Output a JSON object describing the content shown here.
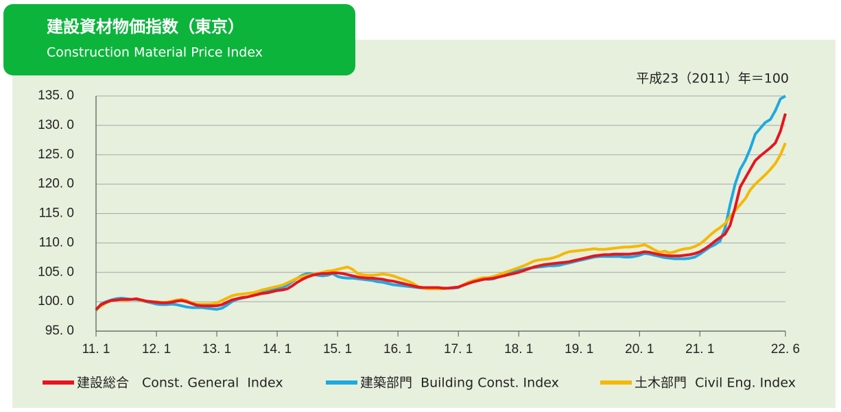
{
  "chart_data": {
    "type": "line",
    "title": "建設資材物価指数（東京）",
    "subtitle": "Construction Material Price Index",
    "note": "平成23（2011）年＝100",
    "categories": [
      "11. 1",
      null,
      null,
      null,
      null,
      null,
      null,
      null,
      null,
      null,
      null,
      null,
      "12. 1",
      null,
      null,
      null,
      null,
      null,
      null,
      null,
      null,
      null,
      null,
      null,
      "13. 1",
      null,
      null,
      null,
      null,
      null,
      null,
      null,
      null,
      null,
      null,
      null,
      "14. 1",
      null,
      null,
      null,
      null,
      null,
      null,
      null,
      null,
      null,
      null,
      null,
      "15. 1",
      null,
      null,
      null,
      null,
      null,
      null,
      null,
      null,
      null,
      null,
      null,
      "16. 1",
      null,
      null,
      null,
      null,
      null,
      null,
      null,
      null,
      null,
      null,
      null,
      "17. 1",
      null,
      null,
      null,
      null,
      null,
      null,
      null,
      null,
      null,
      null,
      null,
      "18. 1",
      null,
      null,
      null,
      null,
      null,
      null,
      null,
      null,
      null,
      null,
      null,
      "19. 1",
      null,
      null,
      null,
      null,
      null,
      null,
      null,
      null,
      null,
      null,
      null,
      "20. 1",
      null,
      null,
      null,
      null,
      null,
      null,
      null,
      null,
      null,
      null,
      null,
      "21. 1",
      null,
      null,
      null,
      null,
      null,
      null,
      null,
      null,
      null,
      null,
      null,
      null,
      null,
      null,
      null,
      null,
      "22. 6"
    ],
    "series": [
      {
        "name": "建設総合　Const. General  Index",
        "color": "#e8141e",
        "values": [
          98.7,
          99.5,
          99.9,
          100.2,
          100.3,
          100.4,
          100.4,
          100.4,
          100.5,
          100.3,
          100.1,
          100.0,
          99.9,
          99.8,
          99.8,
          99.9,
          100.1,
          100.2,
          100.0,
          99.7,
          99.4,
          99.3,
          99.3,
          99.3,
          99.3,
          99.5,
          99.9,
          100.3,
          100.5,
          100.7,
          100.8,
          101.0,
          101.2,
          101.4,
          101.5,
          101.7,
          101.9,
          102.0,
          102.2,
          102.7,
          103.3,
          103.8,
          104.2,
          104.5,
          104.7,
          104.8,
          104.8,
          104.9,
          104.9,
          104.8,
          104.6,
          104.4,
          104.2,
          104.1,
          104.0,
          104.0,
          103.9,
          103.8,
          103.6,
          103.5,
          103.3,
          103.1,
          102.9,
          102.7,
          102.5,
          102.4,
          102.4,
          102.4,
          102.4,
          102.3,
          102.3,
          102.4,
          102.5,
          102.8,
          103.1,
          103.4,
          103.6,
          103.8,
          103.9,
          104.0,
          104.2,
          104.4,
          104.6,
          104.8,
          105.0,
          105.3,
          105.6,
          105.9,
          106.1,
          106.3,
          106.4,
          106.5,
          106.6,
          106.7,
          106.8,
          107.0,
          107.2,
          107.4,
          107.6,
          107.8,
          107.9,
          108.0,
          108.0,
          108.1,
          108.1,
          108.1,
          108.1,
          108.2,
          108.3,
          108.5,
          108.4,
          108.2,
          108.0,
          107.9,
          107.8,
          107.8,
          107.8,
          107.9,
          108.0,
          108.2,
          108.5,
          109.0,
          109.6,
          110.3,
          110.9,
          111.5,
          113.0,
          116.0,
          119.5,
          121.0,
          122.5,
          124.0,
          124.8,
          125.5,
          126.2,
          127.0,
          129.0,
          132.0
        ]
      },
      {
        "name": "建築部門  Building Const. Index",
        "color": "#1ea9e1",
        "values": [
          98.5,
          99.6,
          100.0,
          100.3,
          100.5,
          100.6,
          100.5,
          100.4,
          100.4,
          100.2,
          100.0,
          99.8,
          99.6,
          99.5,
          99.5,
          99.6,
          99.5,
          99.3,
          99.1,
          99.0,
          99.0,
          99.0,
          98.9,
          98.8,
          98.7,
          98.9,
          99.4,
          100.0,
          100.4,
          100.6,
          100.8,
          101.0,
          101.3,
          101.6,
          101.8,
          102.0,
          102.2,
          102.4,
          102.8,
          103.4,
          104.0,
          104.5,
          104.8,
          104.7,
          104.5,
          104.4,
          104.5,
          104.8,
          104.3,
          104.1,
          104.0,
          104.0,
          103.9,
          103.8,
          103.7,
          103.6,
          103.4,
          103.3,
          103.1,
          102.9,
          102.8,
          102.7,
          102.6,
          102.5,
          102.4,
          102.3,
          102.4,
          102.3,
          102.3,
          102.3,
          102.3,
          102.3,
          102.4,
          102.9,
          103.3,
          103.6,
          103.8,
          103.9,
          103.8,
          103.9,
          104.2,
          104.5,
          104.8,
          105.1,
          105.3,
          105.5,
          105.7,
          105.8,
          105.9,
          106.0,
          106.1,
          106.1,
          106.2,
          106.4,
          106.6,
          106.8,
          107.0,
          107.2,
          107.4,
          107.6,
          107.7,
          107.7,
          107.7,
          107.7,
          107.7,
          107.6,
          107.6,
          107.7,
          107.9,
          108.2,
          108.1,
          107.9,
          107.7,
          107.5,
          107.4,
          107.3,
          107.3,
          107.3,
          107.4,
          107.6,
          108.1,
          108.7,
          109.3,
          109.7,
          110.3,
          112.5,
          116.5,
          120.0,
          122.5,
          124.0,
          126.0,
          128.5,
          129.5,
          130.5,
          131.0,
          132.5,
          134.5,
          135.0
        ]
      },
      {
        "name": "土木部門  Civil Eng. Index",
        "color": "#f5b800",
        "values": [
          98.6,
          99.3,
          99.8,
          100.2,
          100.3,
          100.3,
          100.3,
          100.4,
          100.5,
          100.2,
          100.1,
          100.0,
          100.0,
          99.9,
          99.9,
          100.1,
          100.3,
          100.4,
          100.2,
          99.8,
          99.6,
          99.6,
          99.6,
          99.6,
          99.8,
          100.2,
          100.6,
          101.0,
          101.2,
          101.3,
          101.4,
          101.5,
          101.7,
          102.0,
          102.2,
          102.4,
          102.6,
          102.8,
          103.2,
          103.6,
          104.0,
          104.3,
          104.5,
          104.6,
          104.8,
          105.0,
          105.2,
          105.3,
          105.5,
          105.7,
          105.9,
          105.5,
          104.8,
          104.6,
          104.5,
          104.5,
          104.6,
          104.7,
          104.6,
          104.4,
          104.1,
          103.8,
          103.5,
          103.1,
          102.6,
          102.3,
          102.2,
          102.2,
          102.2,
          102.2,
          102.3,
          102.4,
          102.5,
          102.9,
          103.3,
          103.6,
          103.9,
          104.1,
          104.1,
          104.3,
          104.6,
          104.9,
          105.2,
          105.5,
          105.8,
          106.1,
          106.5,
          106.9,
          107.1,
          107.2,
          107.3,
          107.5,
          107.8,
          108.2,
          108.5,
          108.6,
          108.7,
          108.8,
          108.9,
          109.0,
          108.9,
          108.9,
          109.0,
          109.1,
          109.2,
          109.3,
          109.3,
          109.4,
          109.5,
          109.7,
          109.3,
          108.8,
          108.4,
          108.6,
          108.3,
          108.5,
          108.8,
          109.0,
          109.1,
          109.4,
          109.8,
          110.5,
          111.3,
          112.0,
          112.6,
          113.3,
          114.5,
          115.5,
          116.5,
          117.5,
          119.0,
          120.0,
          120.8,
          121.6,
          122.5,
          123.5,
          125.0,
          127.0
        ]
      }
    ],
    "ylim": [
      95,
      135
    ],
    "yticks": [
      {
        "value": 95,
        "label": "95. 0"
      },
      {
        "value": 100,
        "label": "100. 0"
      },
      {
        "value": 105,
        "label": "105. 0"
      },
      {
        "value": 110,
        "label": "110. 0"
      },
      {
        "value": 115,
        "label": "115. 0"
      },
      {
        "value": 120,
        "label": "120. 0"
      },
      {
        "value": 125,
        "label": "125. 0"
      },
      {
        "value": 130,
        "label": "130. 0"
      },
      {
        "value": 135,
        "label": "135. 0"
      }
    ],
    "grid": true,
    "legend": "bottom"
  }
}
